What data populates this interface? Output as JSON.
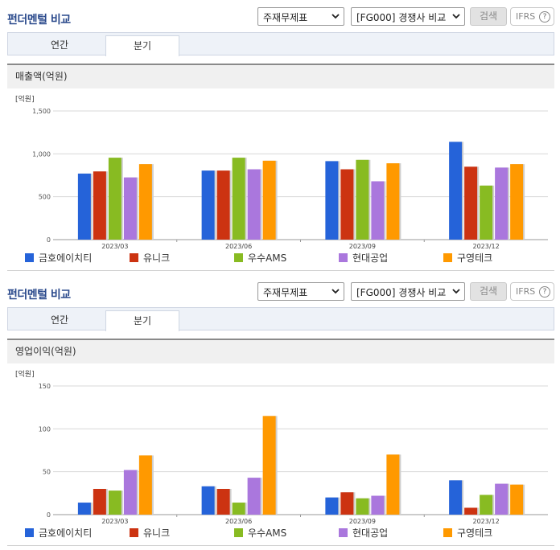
{
  "panels": [
    {
      "title": "펀더멘털 비교",
      "select1": "주재무제표",
      "select2": "[FG000] 경쟁사 비교",
      "search_label": "검색",
      "ifrs_label": "IFRS",
      "ifrs_help": "?",
      "tabs": [
        "연간",
        "분기"
      ],
      "active_tab": 1,
      "section_title": "매출액(억원)",
      "unit": "[억원]"
    },
    {
      "title": "펀더멘털 비교",
      "select1": "주재무제표",
      "select2": "[FG000] 경쟁사 비교",
      "search_label": "검색",
      "ifrs_label": "IFRS",
      "ifrs_help": "?",
      "tabs": [
        "연간",
        "분기"
      ],
      "active_tab": 1,
      "section_title": "영업이익(억원)",
      "unit": "[억원]"
    }
  ],
  "colors": {
    "series": [
      "#2563d9",
      "#cc3311",
      "#88bb22",
      "#aa77dd",
      "#ff9900"
    ]
  },
  "icons": [
    "caret-down-icon",
    "help-circle-icon",
    "legend-swatch-icon"
  ],
  "chart_data": [
    {
      "type": "bar",
      "categories": [
        "2023/03",
        "2023/06",
        "2023/09",
        "2023/12"
      ],
      "ylim": [
        0,
        1500
      ],
      "yticks": [
        "0",
        "500",
        "1,000",
        "1,500"
      ],
      "ytick_values": [
        0,
        500,
        1000,
        1500
      ],
      "grid": true,
      "legend_position": "bottom",
      "series": [
        {
          "name": "금호에이치티",
          "values": [
            770,
            805,
            915,
            1140
          ]
        },
        {
          "name": "유니크",
          "values": [
            795,
            805,
            820,
            850
          ]
        },
        {
          "name": "우수AMS",
          "values": [
            955,
            955,
            930,
            630
          ]
        },
        {
          "name": "현대공업",
          "values": [
            725,
            820,
            680,
            840
          ]
        },
        {
          "name": "구영테크",
          "values": [
            880,
            920,
            890,
            880
          ]
        }
      ]
    },
    {
      "type": "bar",
      "categories": [
        "2023/03",
        "2023/06",
        "2023/09",
        "2023/12"
      ],
      "ylim": [
        0,
        150
      ],
      "yticks": [
        "0",
        "50",
        "100",
        "150"
      ],
      "ytick_values": [
        0,
        50,
        100,
        150
      ],
      "grid": true,
      "legend_position": "bottom",
      "series": [
        {
          "name": "금호에이치티",
          "values": [
            14,
            33,
            20,
            40
          ]
        },
        {
          "name": "유니크",
          "values": [
            30,
            30,
            26,
            8
          ]
        },
        {
          "name": "우수AMS",
          "values": [
            28,
            14,
            19,
            23
          ]
        },
        {
          "name": "현대공업",
          "values": [
            52,
            43,
            22,
            36
          ]
        },
        {
          "name": "구영테크",
          "values": [
            69,
            115,
            70,
            35
          ]
        }
      ]
    }
  ]
}
